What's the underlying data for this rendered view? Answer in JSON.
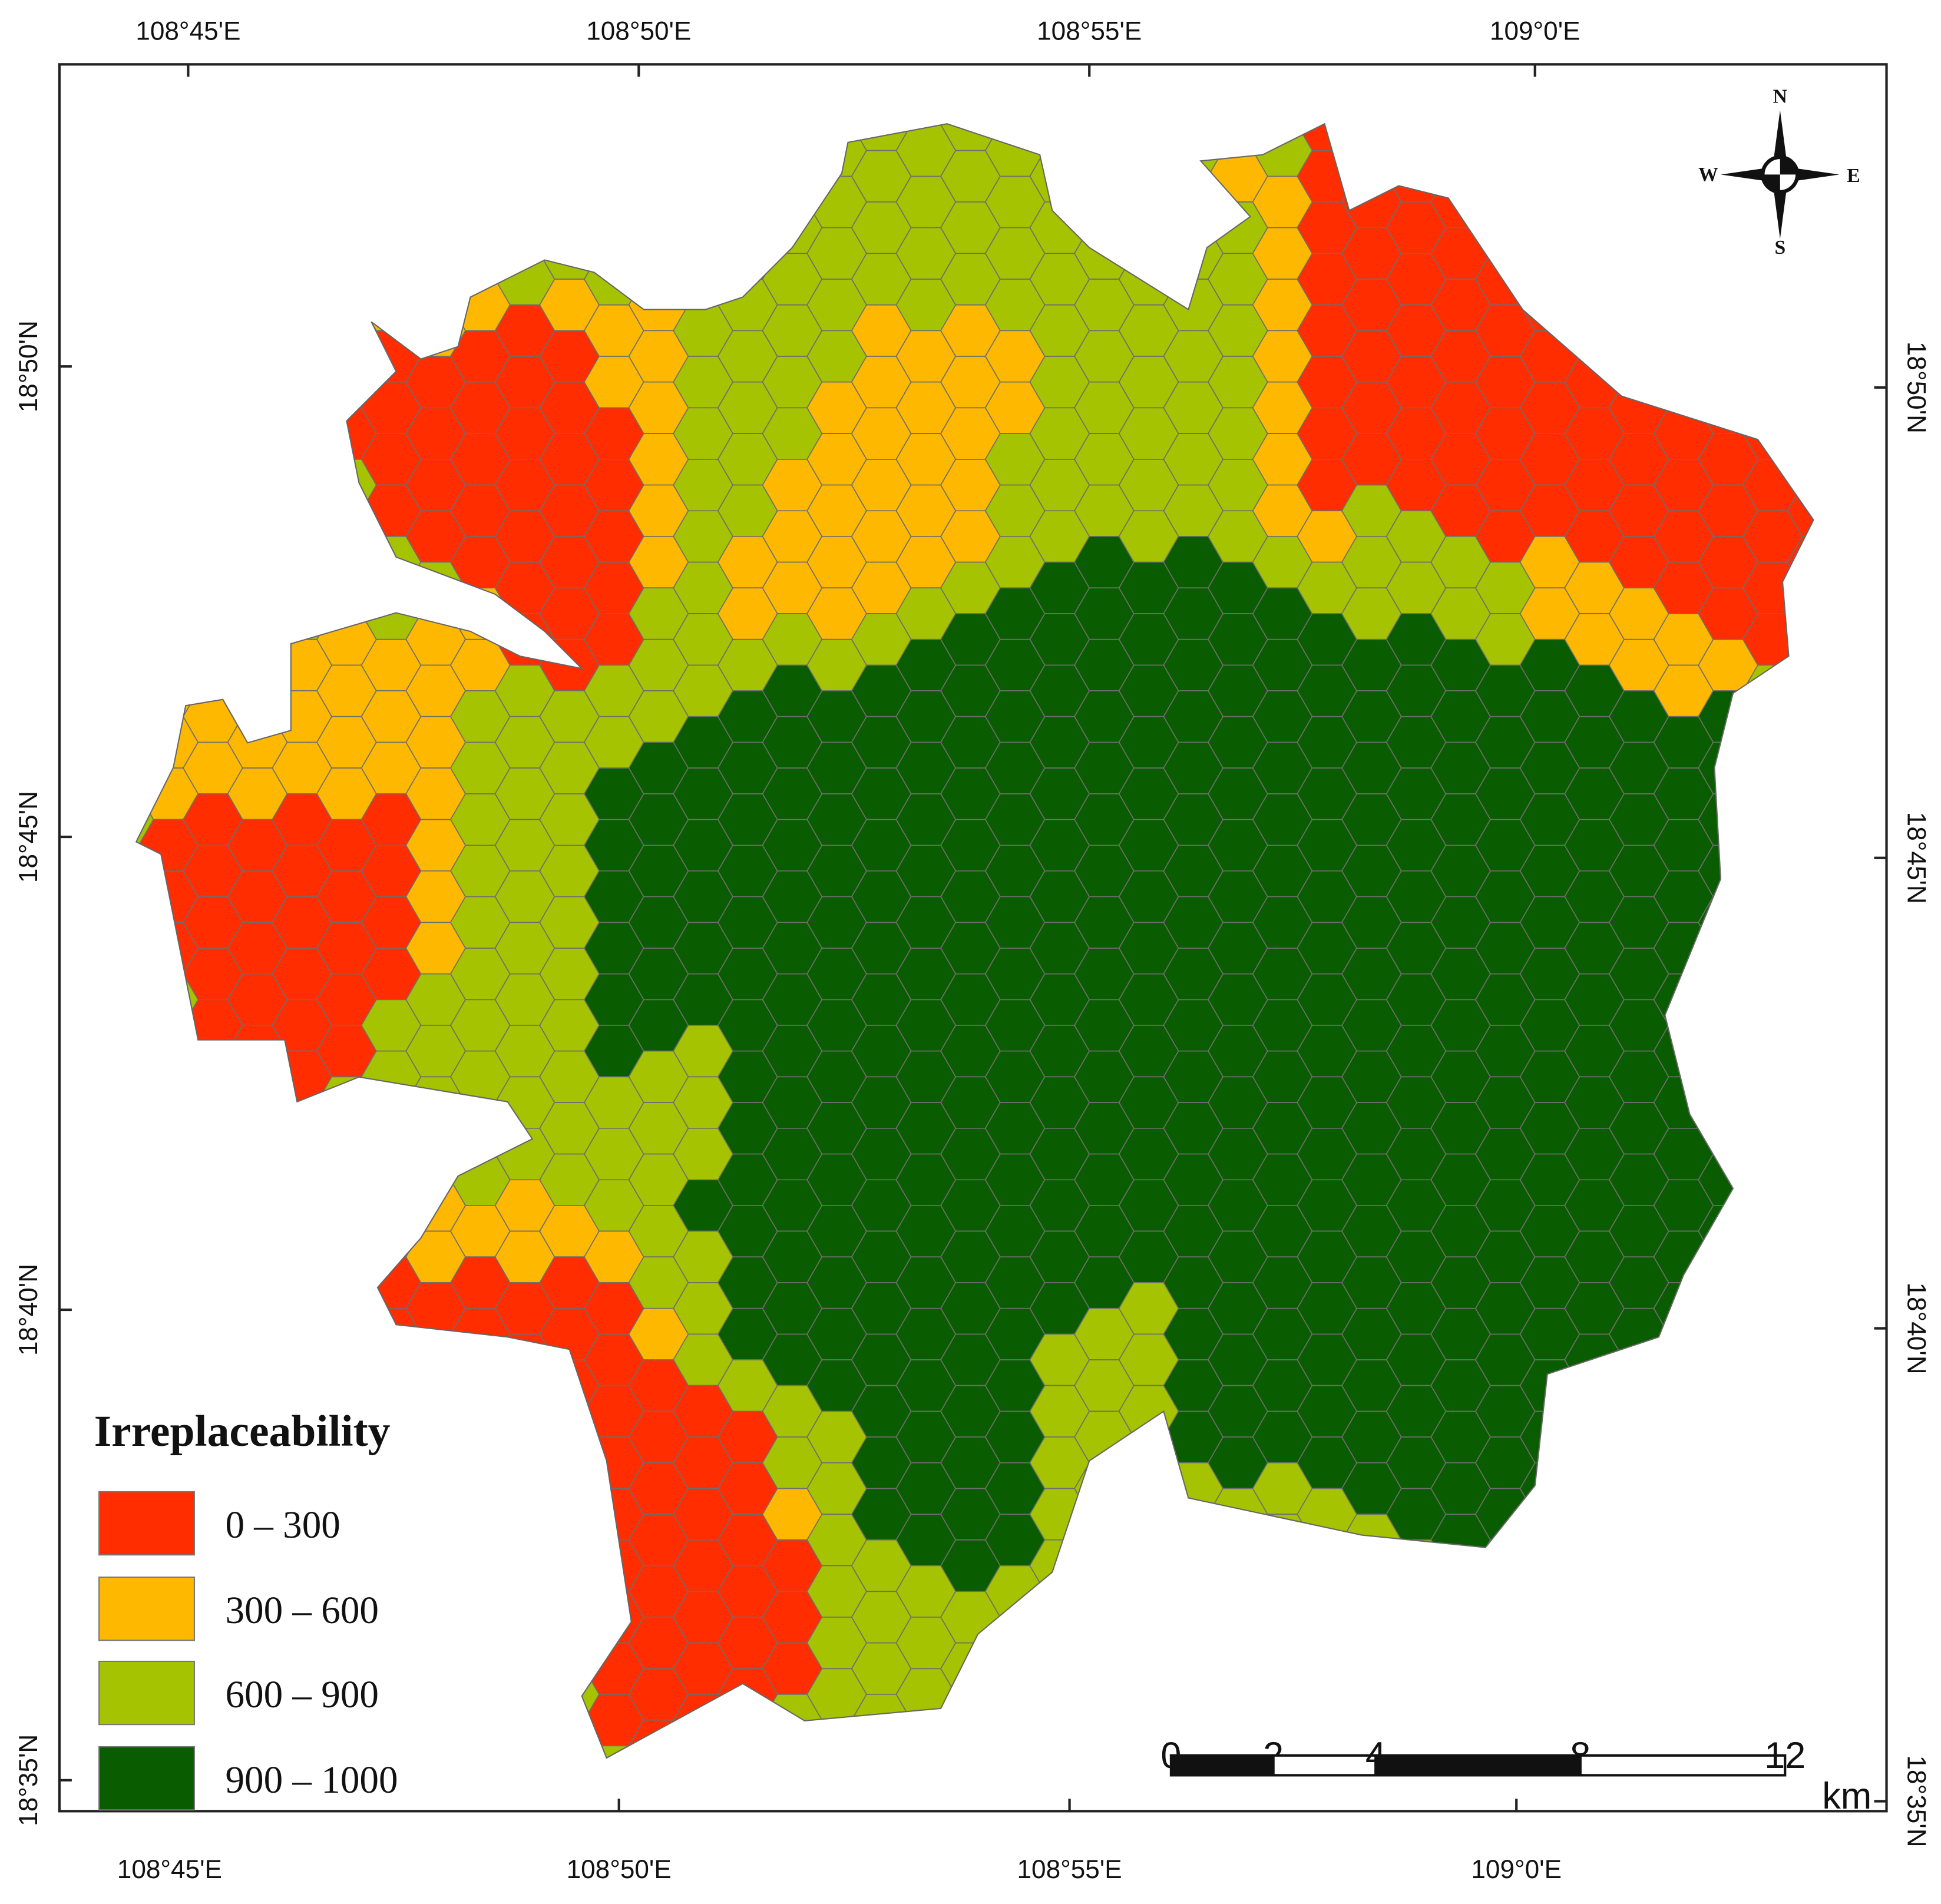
{
  "axes": {
    "top": [
      "108°45'E",
      "108°50'E",
      "108°55'E",
      "109°0'E"
    ],
    "bottom": [
      "108°45'E",
      "108°50'E",
      "108°55'E",
      "109°0'E"
    ],
    "left": [
      "18°50'N",
      "18°45'N",
      "18°40'N",
      "18°35'N"
    ],
    "right": [
      "18°50'N",
      "18°45'N",
      "18°40'N",
      "18°35'N"
    ]
  },
  "compass": {
    "n": "N",
    "s": "S",
    "e": "E",
    "w": "W"
  },
  "legend": {
    "title": "Irreplaceability",
    "items": [
      {
        "label": "0 – 300",
        "color": "#ff2d00"
      },
      {
        "label": "300 – 600",
        "color": "#ffb800"
      },
      {
        "label": "600 – 900",
        "color": "#a5c300"
      },
      {
        "label": "900 – 1000",
        "color": "#0a5c00"
      }
    ]
  },
  "scale_bar": {
    "ticks": [
      0,
      2,
      4,
      8,
      12
    ],
    "unit": "km"
  }
}
